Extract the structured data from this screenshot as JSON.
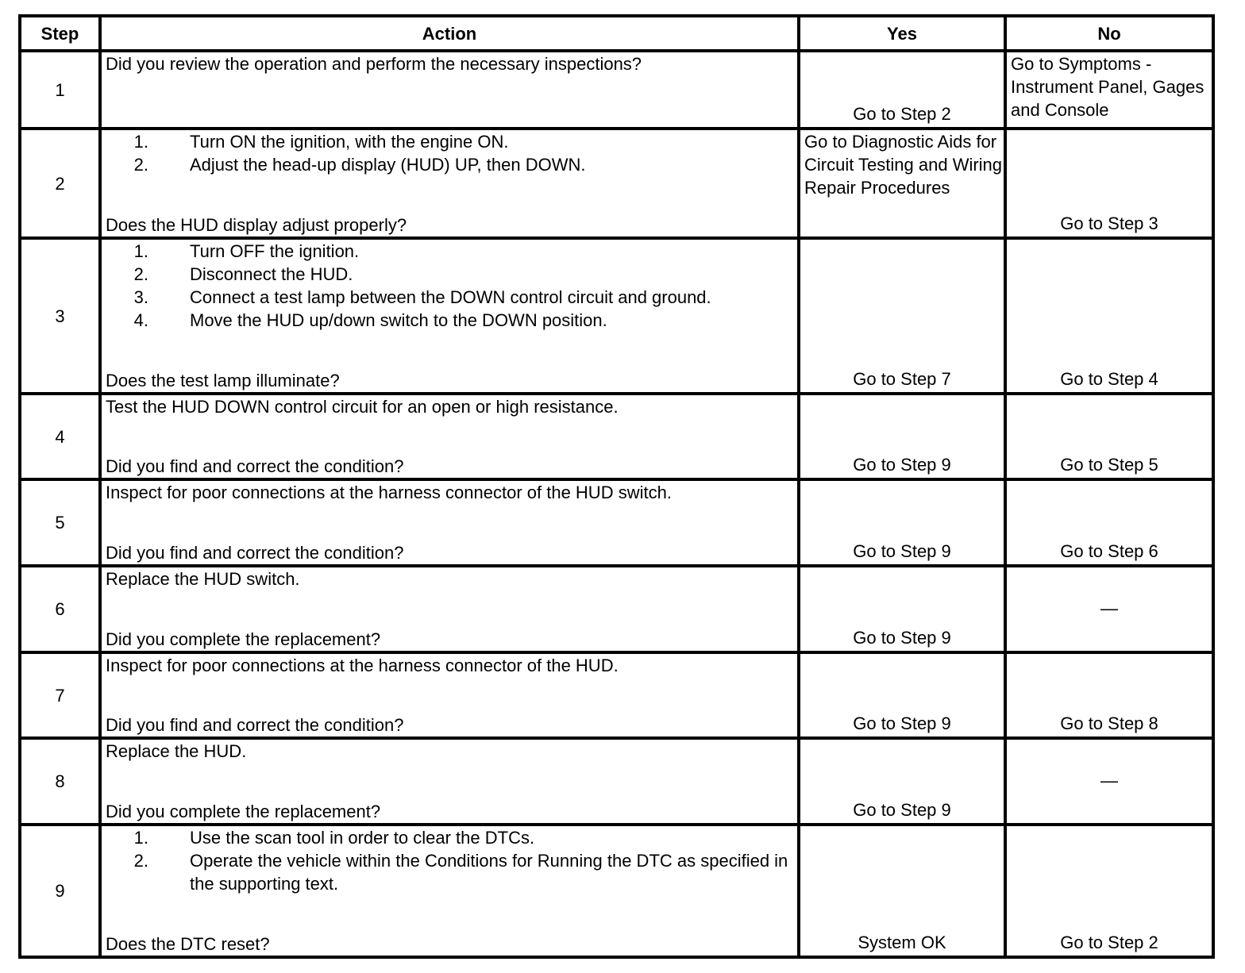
{
  "headers": {
    "step": "Step",
    "action": "Action",
    "yes": "Yes",
    "no": "No"
  },
  "rows": [
    {
      "step": "1",
      "items": [],
      "question": "Did you review the operation and perform the necessary inspections?",
      "yes": "Go to Step 2",
      "no": "Go to Symptoms - Instrument Panel, Gages and Console"
    },
    {
      "step": "2",
      "items": [
        {
          "n": "1.",
          "text": "Turn ON the ignition, with the engine ON."
        },
        {
          "n": "2.",
          "text": "Adjust the head-up display (HUD) UP, then DOWN."
        }
      ],
      "question": "Does the HUD display adjust properly?",
      "yes": "Go to Diagnostic Aids for Circuit Testing and Wiring Repair Procedures",
      "no": "Go to Step 3"
    },
    {
      "step": "3",
      "items": [
        {
          "n": "1.",
          "text": "Turn OFF the ignition."
        },
        {
          "n": "2.",
          "text": "Disconnect the HUD."
        },
        {
          "n": "3.",
          "text": "Connect a test lamp between the DOWN control circuit and ground."
        },
        {
          "n": "4.",
          "text": "Move the HUD up/down switch to the DOWN position."
        }
      ],
      "question": "Does the test lamp illuminate?",
      "yes": "Go to Step 7",
      "no": "Go to Step 4"
    },
    {
      "step": "4",
      "intro": "Test the HUD DOWN control circuit for an open or high resistance.",
      "items": [],
      "question": "Did you find and correct the condition?",
      "yes": "Go to Step 9",
      "no": "Go to Step 5"
    },
    {
      "step": "5",
      "intro": "Inspect for poor connections at the harness connector of the HUD switch.",
      "items": [],
      "question": "Did you find and correct the condition?",
      "yes": "Go to Step 9",
      "no": "Go to Step 6"
    },
    {
      "step": "6",
      "intro": "Replace the HUD switch.",
      "items": [],
      "question": "Did you complete the replacement?",
      "yes": "Go to Step 9",
      "no": "—"
    },
    {
      "step": "7",
      "intro": "Inspect for poor connections at the harness connector of the HUD.",
      "items": [],
      "question": "Did you find and correct the condition?",
      "yes": "Go to Step 9",
      "no": "Go to Step 8"
    },
    {
      "step": "8",
      "intro": "Replace the HUD.",
      "items": [],
      "question": "Did you complete the replacement?",
      "yes": "Go to Step 9",
      "no": "—"
    },
    {
      "step": "9",
      "items": [
        {
          "n": "1.",
          "text": "Use the scan tool in order to clear the DTCs."
        },
        {
          "n": "2.",
          "text": "Operate the vehicle within the Conditions for Running the DTC as specified in the supporting text."
        }
      ],
      "question": "Does the DTC reset?",
      "yes": "System OK",
      "no": "Go to Step 2"
    }
  ]
}
